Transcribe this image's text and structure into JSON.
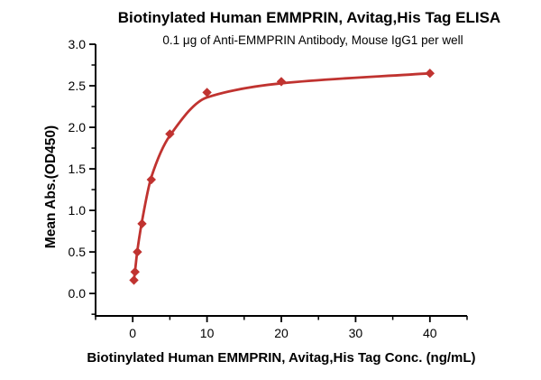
{
  "chart_data": {
    "type": "scatter",
    "title": "Biotinylated Human EMMPRIN, Avitag,His Tag ELISA",
    "subtitle": "0.1 μg of Anti-EMMPRIN Antibody, Mouse IgG1 per well",
    "xlabel": "Biotinylated Human EMMPRIN, Avitag,His Tag Conc. (ng/mL)",
    "ylabel": "Mean Abs.(OD450)",
    "x": [
      0.16,
      0.31,
      0.63,
      1.25,
      2.5,
      5,
      10,
      20,
      40
    ],
    "y": [
      0.16,
      0.26,
      0.5,
      0.84,
      1.37,
      1.92,
      2.42,
      2.55,
      2.65
    ],
    "fit_curve_y": [
      0.16,
      0.27,
      0.52,
      0.87,
      1.4,
      1.9,
      2.36,
      2.53,
      2.65
    ],
    "xlim": [
      -5,
      45
    ],
    "ylim": [
      -0.27,
      3.0
    ],
    "x_ticks": [
      0,
      10,
      20,
      30,
      40
    ],
    "x_minor_step": 5,
    "y_ticks": [
      0.0,
      0.5,
      1.0,
      1.5,
      2.0,
      2.5,
      3.0
    ],
    "y_minor_step": 0.25,
    "grid": false,
    "legend": null,
    "marker": "diamond",
    "colors": {
      "series": "#C03330",
      "axis": "#000000",
      "text": "#000000"
    }
  }
}
